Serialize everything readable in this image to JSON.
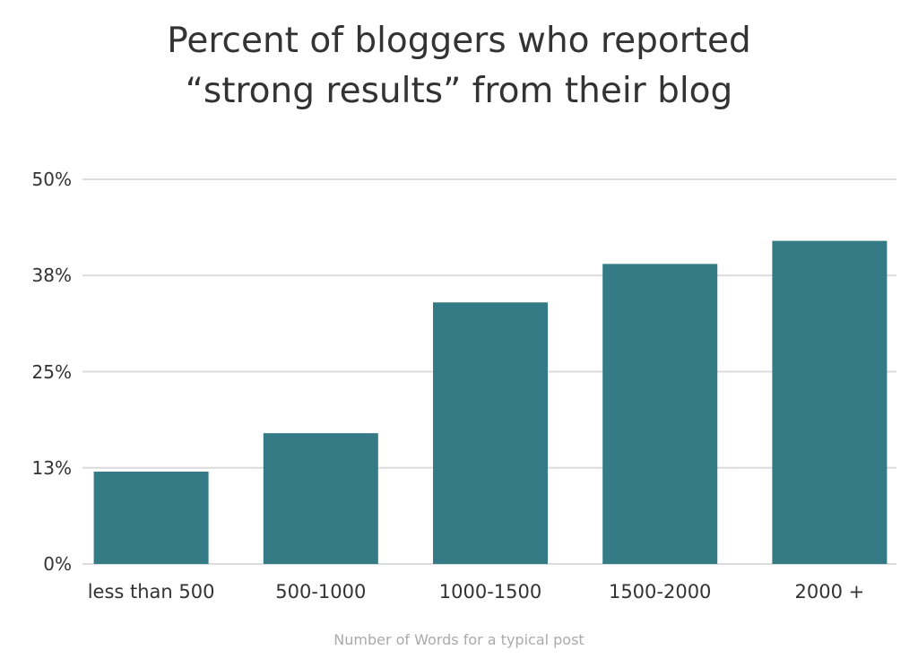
{
  "chart_data": {
    "type": "bar",
    "title": "Percent of bloggers who reported “strong results” from their blog",
    "x_label": "Number of Words for a typical post",
    "categories": [
      "less than 500",
      "500-1000",
      "1000-1500",
      "1500-2000",
      "2000 +"
    ],
    "values": [
      12,
      17,
      34,
      39,
      42
    ],
    "color": "#347b86",
    "ylim": [
      0,
      50
    ],
    "yticks": [
      {
        "value": 0,
        "label": "0%"
      },
      {
        "value": 12.5,
        "label": "13%"
      },
      {
        "value": 25,
        "label": "25%"
      },
      {
        "value": 37.5,
        "label": "38%"
      },
      {
        "value": 50,
        "label": "50%"
      }
    ],
    "grid": true
  }
}
